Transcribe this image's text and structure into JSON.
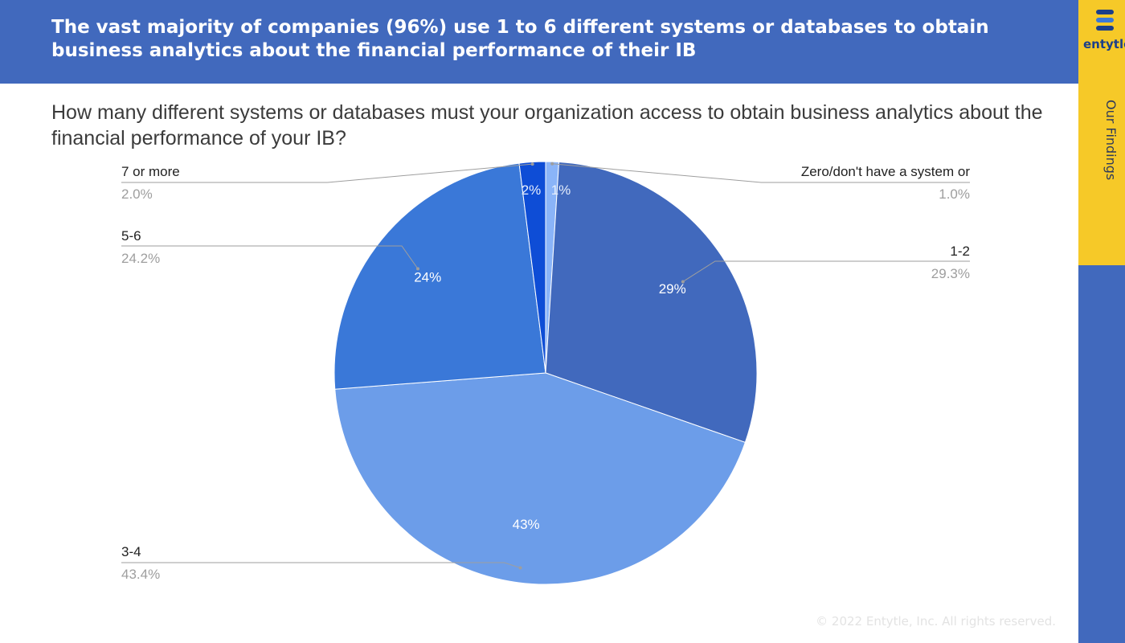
{
  "header": {
    "title": "The vast majority of companies (96%) use 1 to 6 different systems or databases to obtain business analytics about the financial performance of their IB"
  },
  "question": "How many different systems or databases must your organization access to obtain business analytics about the financial performance of your IB?",
  "sidebar": {
    "logo_text": "entytle",
    "section_label": "Our Findings"
  },
  "footer": "© 2022 Entytle, Inc. All rights reserved.",
  "colors": {
    "header_bg": "#4169bd",
    "sidebar_accent": "#f6c928"
  },
  "chart_data": {
    "type": "pie",
    "slices": [
      {
        "name": "Zero/don't have a system or",
        "value": 1.0,
        "value_label": "1.0%",
        "pct_label": "1%",
        "color": "#8ab4f8"
      },
      {
        "name": "1-2",
        "value": 29.3,
        "value_label": "29.3%",
        "pct_label": "29%",
        "color": "#4169bd"
      },
      {
        "name": "3-4",
        "value": 43.4,
        "value_label": "43.4%",
        "pct_label": "43%",
        "color": "#6c9de9"
      },
      {
        "name": "5-6",
        "value": 24.2,
        "value_label": "24.2%",
        "pct_label": "24%",
        "color": "#3a78d8"
      },
      {
        "name": "7 or more",
        "value": 2.0,
        "value_label": "2.0%",
        "pct_label": "2%",
        "color": "#0e4dd6"
      }
    ]
  }
}
